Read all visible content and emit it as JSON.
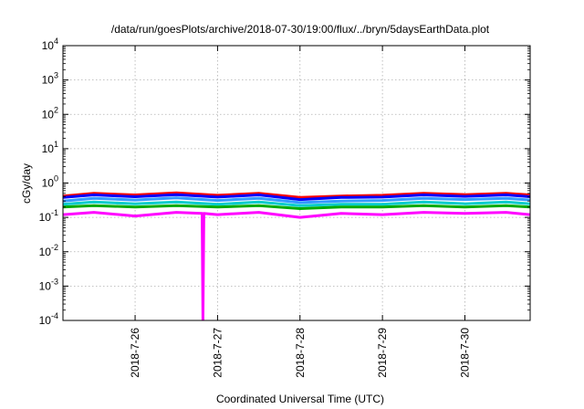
{
  "chart_data": {
    "type": "line",
    "title": "/data/run/goesPlots/archive/2018-07-30/19:00/flux/../bryn/5daysEarthData.plot",
    "xlabel": "Coordinated Universal Time (UTC)",
    "ylabel": "cGy/day",
    "y_scale": "log",
    "ylim": [
      0.0001,
      10000
    ],
    "y_ticks": [
      {
        "value": 10000,
        "base": "10",
        "exp": "4"
      },
      {
        "value": 1000,
        "base": "10",
        "exp": "3"
      },
      {
        "value": 100,
        "base": "10",
        "exp": "2"
      },
      {
        "value": 10,
        "base": "10",
        "exp": "1"
      },
      {
        "value": 1,
        "base": "10",
        "exp": "0"
      },
      {
        "value": 0.1,
        "base": "10",
        "exp": "-1"
      },
      {
        "value": 0.01,
        "base": "10",
        "exp": "-2"
      },
      {
        "value": 0.001,
        "base": "10",
        "exp": "-3"
      },
      {
        "value": 0.0001,
        "base": "10",
        "exp": "-4"
      }
    ],
    "xlim": [
      "2018-07-25 03:00",
      "2018-07-30 19:00"
    ],
    "x_ticks": [
      {
        "value": "2018-07-26 00:00",
        "label": "2018-7-26"
      },
      {
        "value": "2018-07-27 00:00",
        "label": "2018-7-27"
      },
      {
        "value": "2018-07-28 00:00",
        "label": "2018-7-28"
      },
      {
        "value": "2018-07-29 00:00",
        "label": "2018-7-29"
      },
      {
        "value": "2018-07-30 00:00",
        "label": "2018-7-30"
      }
    ],
    "grid": true,
    "legend": "none",
    "series": [
      {
        "color": "#ff0000",
        "x": [
          "2018-07-25 03:00",
          "2018-07-25 12:00",
          "2018-07-26 00:00",
          "2018-07-26 12:00",
          "2018-07-27 00:00",
          "2018-07-27 12:00",
          "2018-07-28 00:00",
          "2018-07-28 12:00",
          "2018-07-29 00:00",
          "2018-07-29 12:00",
          "2018-07-30 00:00",
          "2018-07-30 12:00",
          "2018-07-30 19:00"
        ],
        "y": [
          0.42,
          0.5,
          0.45,
          0.52,
          0.44,
          0.5,
          0.38,
          0.42,
          0.44,
          0.5,
          0.46,
          0.5,
          0.45
        ]
      },
      {
        "color": "#0000ff",
        "x": [
          "2018-07-25 03:00",
          "2018-07-25 12:00",
          "2018-07-26 00:00",
          "2018-07-26 12:00",
          "2018-07-27 00:00",
          "2018-07-27 12:00",
          "2018-07-28 00:00",
          "2018-07-28 12:00",
          "2018-07-29 00:00",
          "2018-07-29 12:00",
          "2018-07-30 00:00",
          "2018-07-30 12:00",
          "2018-07-30 19:00"
        ],
        "y": [
          0.38,
          0.45,
          0.4,
          0.46,
          0.39,
          0.45,
          0.33,
          0.38,
          0.39,
          0.45,
          0.41,
          0.45,
          0.4
        ]
      },
      {
        "color": "#3399ff",
        "x": [
          "2018-07-25 03:00",
          "2018-07-25 12:00",
          "2018-07-26 00:00",
          "2018-07-26 12:00",
          "2018-07-27 00:00",
          "2018-07-27 12:00",
          "2018-07-28 00:00",
          "2018-07-28 12:00",
          "2018-07-29 00:00",
          "2018-07-29 12:00",
          "2018-07-30 00:00",
          "2018-07-30 12:00",
          "2018-07-30 19:00"
        ],
        "y": [
          0.3,
          0.36,
          0.32,
          0.37,
          0.31,
          0.36,
          0.27,
          0.3,
          0.31,
          0.36,
          0.33,
          0.36,
          0.32
        ]
      },
      {
        "color": "#00cccc",
        "x": [
          "2018-07-25 03:00",
          "2018-07-25 12:00",
          "2018-07-26 00:00",
          "2018-07-26 12:00",
          "2018-07-27 00:00",
          "2018-07-27 12:00",
          "2018-07-28 00:00",
          "2018-07-28 12:00",
          "2018-07-29 00:00",
          "2018-07-29 12:00",
          "2018-07-30 00:00",
          "2018-07-30 12:00",
          "2018-07-30 19:00"
        ],
        "y": [
          0.24,
          0.28,
          0.25,
          0.28,
          0.24,
          0.28,
          0.22,
          0.24,
          0.24,
          0.28,
          0.25,
          0.28,
          0.25
        ]
      },
      {
        "color": "#00aa00",
        "x": [
          "2018-07-25 03:00",
          "2018-07-25 12:00",
          "2018-07-26 00:00",
          "2018-07-26 12:00",
          "2018-07-27 00:00",
          "2018-07-27 12:00",
          "2018-07-28 00:00",
          "2018-07-28 12:00",
          "2018-07-29 00:00",
          "2018-07-29 12:00",
          "2018-07-30 00:00",
          "2018-07-30 12:00",
          "2018-07-30 19:00"
        ],
        "y": [
          0.2,
          0.22,
          0.2,
          0.22,
          0.2,
          0.22,
          0.18,
          0.2,
          0.2,
          0.22,
          0.2,
          0.22,
          0.2
        ]
      },
      {
        "color": "#ff00ff",
        "x": [
          "2018-07-25 03:00",
          "2018-07-25 12:00",
          "2018-07-26 00:00",
          "2018-07-26 12:00",
          "2018-07-26 19:30",
          "2018-07-26 19:45",
          "2018-07-26 20:00",
          "2018-07-27 00:00",
          "2018-07-27 12:00",
          "2018-07-28 00:00",
          "2018-07-28 12:00",
          "2018-07-29 00:00",
          "2018-07-29 12:00",
          "2018-07-30 00:00",
          "2018-07-30 12:00",
          "2018-07-30 19:00"
        ],
        "y": [
          0.12,
          0.14,
          0.11,
          0.14,
          0.13,
          0.0001,
          0.13,
          0.12,
          0.14,
          0.1,
          0.13,
          0.12,
          0.14,
          0.13,
          0.14,
          0.12
        ]
      }
    ]
  }
}
